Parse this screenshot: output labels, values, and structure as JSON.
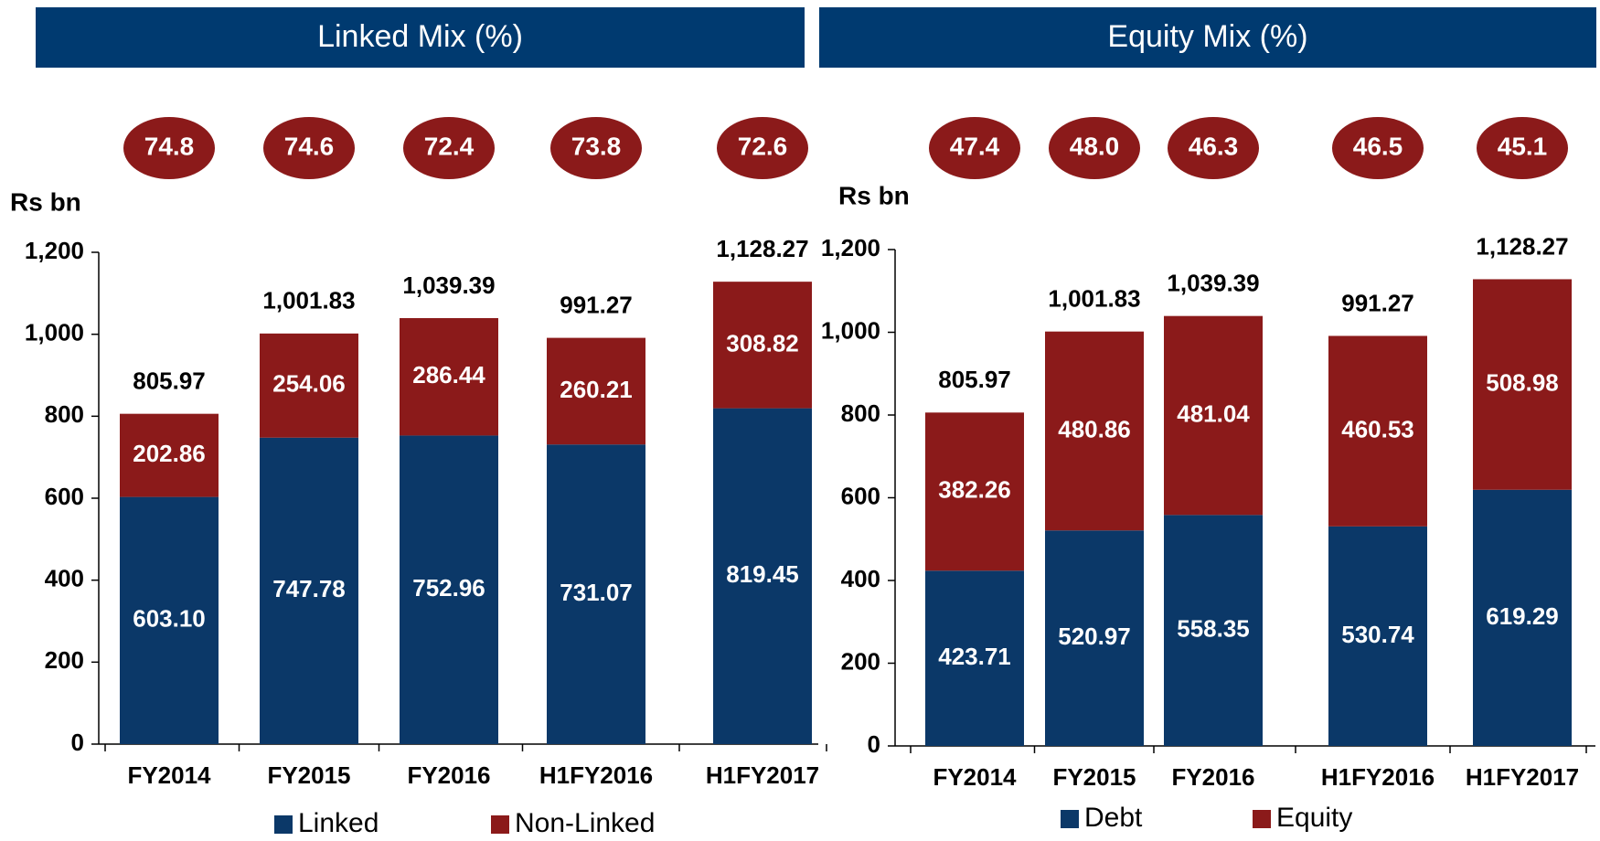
{
  "chart_data": [
    {
      "type": "bar",
      "stacked": true,
      "title": "Linked Mix (%)",
      "ylabel": "Rs bn",
      "categories": [
        "FY2014",
        "FY2015",
        "FY2016",
        "H1FY2016",
        "H1FY2017"
      ],
      "series": [
        {
          "name": "Linked",
          "color": "#0b3868",
          "values": [
            603.1,
            747.78,
            752.96,
            731.07,
            819.45
          ],
          "value_labels": [
            "603.10",
            "747.78",
            "752.96",
            "731.07",
            "819.45"
          ]
        },
        {
          "name": "Non-Linked",
          "color": "#8b1a1a",
          "values": [
            202.86,
            254.06,
            286.44,
            260.21,
            308.82
          ]
        }
      ],
      "totals": [
        805.97,
        1001.83,
        1039.39,
        991.27,
        1128.27
      ],
      "total_labels": [
        "805.97",
        "1,001.83",
        "1,039.39",
        "991.27",
        "1,128.27"
      ],
      "mix": {
        "values": [
          74.8,
          74.6,
          72.4,
          73.8,
          72.6
        ],
        "color": "#8b1a1a"
      },
      "ylim": [
        0,
        1200
      ],
      "yticks": [
        0,
        200,
        400,
        600,
        800,
        {
          "value": 1000,
          "label": "1,000"
        },
        {
          "value": 1200,
          "label": "1,200"
        }
      ]
    },
    {
      "type": "bar",
      "stacked": true,
      "title": "Equity Mix (%)",
      "ylabel": "Rs bn",
      "categories": [
        "FY2014",
        "FY2015",
        "FY2016",
        "H1FY2016",
        "H1FY2017"
      ],
      "series": [
        {
          "name": "Debt",
          "color": "#0b3868",
          "values": [
            423.71,
            520.97,
            558.35,
            530.74,
            619.29
          ]
        },
        {
          "name": "Equity",
          "color": "#8b1a1a",
          "values": [
            382.26,
            480.86,
            481.04,
            460.53,
            508.98
          ]
        }
      ],
      "totals": [
        805.97,
        1001.83,
        1039.39,
        991.27,
        1128.27
      ],
      "total_labels": [
        "805.97",
        "1,001.83",
        "1,039.39",
        "991.27",
        "1,128.27"
      ],
      "mix": {
        "values": [
          47.4,
          48.0,
          46.3,
          46.5,
          45.1
        ],
        "value_labels": [
          "47.4",
          "48.0",
          "46.3",
          "46.5",
          "45.1"
        ],
        "color": "#8b1a1a"
      },
      "ylim": [
        0,
        1200
      ],
      "yticks": [
        0,
        200,
        400,
        600,
        800,
        {
          "value": 1000,
          "label": "1,000"
        },
        {
          "value": 1200,
          "label": "1,200"
        }
      ]
    }
  ]
}
